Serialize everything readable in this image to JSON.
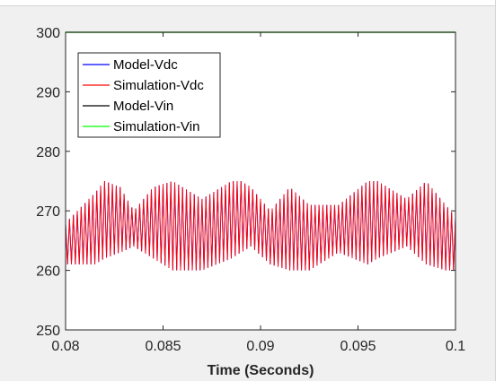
{
  "chart_data": {
    "type": "line",
    "title": "",
    "xlabel": "Time (Seconds)",
    "ylabel": "",
    "xlim": [
      0.08,
      0.1
    ],
    "ylim": [
      250,
      300
    ],
    "x_ticks": [
      0.08,
      0.085,
      0.09,
      0.095,
      0.1
    ],
    "x_tick_labels": [
      "0.08",
      "0.085",
      "0.09",
      "0.095",
      "0.1"
    ],
    "y_ticks": [
      250,
      260,
      270,
      280,
      290,
      300
    ],
    "y_tick_labels": [
      "250",
      "260",
      "270",
      "280",
      "290",
      "300"
    ],
    "grid": false,
    "legend_position": "top-left",
    "series": [
      {
        "name": "Model-Vdc",
        "color": "#0000ff",
        "ripple_frequency_hz": 5000,
        "envelope": {
          "x": [
            0.08,
            0.0815,
            0.082,
            0.0828,
            0.0835,
            0.0845,
            0.0855,
            0.087,
            0.0885,
            0.089,
            0.0895,
            0.0905,
            0.0915,
            0.0925,
            0.094,
            0.0955,
            0.096,
            0.0975,
            0.0985,
            0.0995,
            0.1
          ],
          "upper": [
            268,
            273,
            275,
            274,
            270,
            274,
            275,
            272,
            275,
            275,
            274,
            270,
            274,
            271,
            271,
            275,
            275,
            272,
            275,
            271,
            269
          ],
          "lower": [
            261,
            261,
            262,
            263,
            264,
            262,
            260,
            260,
            262,
            263,
            264,
            261,
            260,
            260,
            263,
            261,
            262,
            264,
            261,
            260,
            260
          ]
        }
      },
      {
        "name": "Simulation-Vdc",
        "color": "#ff0000",
        "ripple_frequency_hz": 5000,
        "envelope": {
          "x": [
            0.08,
            0.0815,
            0.082,
            0.0828,
            0.0835,
            0.0845,
            0.0855,
            0.087,
            0.0885,
            0.089,
            0.0895,
            0.0905,
            0.0915,
            0.0925,
            0.094,
            0.0955,
            0.096,
            0.0975,
            0.0985,
            0.0995,
            0.1
          ],
          "upper": [
            268,
            273,
            275,
            274,
            270,
            274,
            275,
            272,
            275,
            275,
            274,
            270,
            274,
            271,
            271,
            275,
            275,
            272,
            275,
            271,
            269
          ],
          "lower": [
            261,
            261,
            262,
            263,
            264,
            262,
            260,
            260,
            262,
            263,
            264,
            261,
            260,
            260,
            263,
            261,
            262,
            264,
            261,
            260,
            260
          ]
        }
      },
      {
        "name": "Model-Vin",
        "color": "#000000",
        "x": [
          0.08,
          0.1
        ],
        "y": [
          300,
          300
        ]
      },
      {
        "name": "Simulation-Vin",
        "color": "#00ff00",
        "x": [
          0.08,
          0.1
        ],
        "y": [
          300,
          300
        ]
      }
    ]
  }
}
